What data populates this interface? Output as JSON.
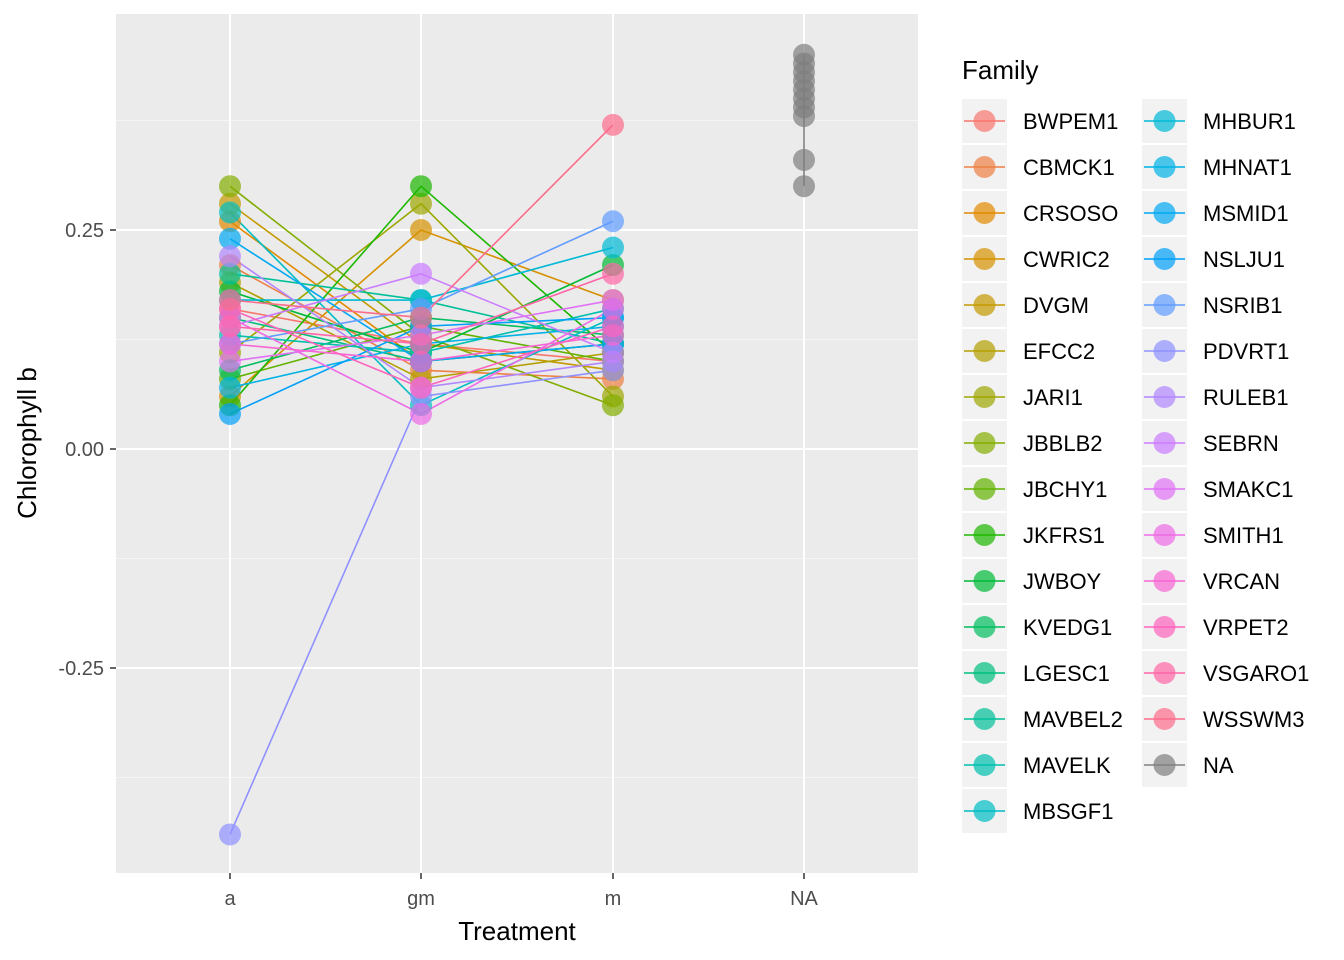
{
  "chart_data": {
    "type": "line",
    "title": "",
    "xlabel": "Treatment",
    "ylabel": "Chlorophyll b",
    "categories": [
      "a",
      "gm",
      "m",
      "NA"
    ],
    "ylim": [
      -0.48,
      0.48
    ],
    "y_ticks": [
      -0.25,
      0.0,
      0.25
    ],
    "y_tick_labels": [
      "-0.25",
      "0.00",
      "0.25"
    ],
    "grid": true,
    "legend": {
      "title": "Family",
      "placement": "right",
      "columns": 2
    },
    "series": [
      {
        "name": "BWPEM1",
        "color": "#F8766D",
        "values": [
          0.16,
          0.12,
          0.1,
          null
        ]
      },
      {
        "name": "CBMCK1",
        "color": "#EE8044",
        "values": [
          0.21,
          0.09,
          0.08,
          null
        ]
      },
      {
        "name": "CRSOSO",
        "color": "#E28900",
        "values": [
          0.26,
          0.1,
          0.12,
          null
        ]
      },
      {
        "name": "CWRIC2",
        "color": "#D69100",
        "values": [
          0.06,
          0.25,
          0.17,
          null
        ]
      },
      {
        "name": "DVGM",
        "color": "#C59900",
        "values": [
          0.28,
          0.12,
          0.09,
          null
        ]
      },
      {
        "name": "EFCC2",
        "color": "#B3A000",
        "values": [
          0.19,
          0.08,
          0.11,
          null
        ]
      },
      {
        "name": "JARI1",
        "color": "#9DA700",
        "values": [
          0.11,
          0.28,
          0.06,
          null
        ]
      },
      {
        "name": "JBBLB2",
        "color": "#83AD00",
        "values": [
          0.3,
          0.13,
          0.05,
          null
        ]
      },
      {
        "name": "JBCHY1",
        "color": "#62B200",
        "values": [
          0.08,
          0.14,
          0.1,
          null
        ]
      },
      {
        "name": "JKFRS1",
        "color": "#1DB700",
        "values": [
          0.05,
          0.3,
          0.11,
          null
        ]
      },
      {
        "name": "JWBOY",
        "color": "#00BA38",
        "values": [
          0.18,
          0.11,
          0.21,
          null
        ]
      },
      {
        "name": "KVEDG1",
        "color": "#00BD5E",
        "values": [
          0.09,
          0.15,
          0.13,
          null
        ]
      },
      {
        "name": "LGESC1",
        "color": "#00BF7D",
        "values": [
          0.15,
          0.1,
          0.12,
          null
        ]
      },
      {
        "name": "MAVBEL2",
        "color": "#00C098",
        "values": [
          0.2,
          0.17,
          0.12,
          null
        ]
      },
      {
        "name": "MAVELK",
        "color": "#00C0AF",
        "values": [
          0.13,
          0.11,
          0.16,
          null
        ]
      },
      {
        "name": "MBSGF1",
        "color": "#00BDC4",
        "values": [
          0.27,
          0.05,
          0.15,
          null
        ]
      },
      {
        "name": "MHBUR1",
        "color": "#00B9D6",
        "values": [
          0.17,
          0.17,
          0.23,
          null
        ]
      },
      {
        "name": "MHNAT1",
        "color": "#00B2E6",
        "values": [
          0.07,
          0.12,
          0.14,
          null
        ]
      },
      {
        "name": "MSMID1",
        "color": "#00A8F2",
        "values": [
          0.24,
          0.1,
          0.12,
          null
        ]
      },
      {
        "name": "NSLJU1",
        "color": "#00A0FA",
        "values": [
          0.04,
          0.14,
          0.15,
          null
        ]
      },
      {
        "name": "NSRIB1",
        "color": "#619CFF",
        "values": [
          0.12,
          0.16,
          0.26,
          null
        ]
      },
      {
        "name": "PDVRT1",
        "color": "#8F91FF",
        "values": [
          -0.44,
          0.06,
          0.09,
          null
        ]
      },
      {
        "name": "RULEB1",
        "color": "#B186FF",
        "values": [
          0.22,
          0.07,
          0.1,
          null
        ]
      },
      {
        "name": "SEBRN",
        "color": "#CB7CFF",
        "values": [
          0.14,
          0.2,
          0.11,
          null
        ]
      },
      {
        "name": "SMAKC1",
        "color": "#E072F5",
        "values": [
          0.1,
          0.13,
          0.17,
          null
        ]
      },
      {
        "name": "SMITH1",
        "color": "#EE6AE6",
        "values": [
          0.15,
          0.04,
          0.16,
          null
        ]
      },
      {
        "name": "VRCAN",
        "color": "#F866D3",
        "values": [
          0.12,
          0.1,
          0.13,
          null
        ]
      },
      {
        "name": "VRPET2",
        "color": "#FE64BE",
        "values": [
          0.16,
          0.07,
          0.14,
          null
        ]
      },
      {
        "name": "VSGARO1",
        "color": "#FF66A7",
        "values": [
          0.14,
          0.12,
          0.2,
          null
        ]
      },
      {
        "name": "WSSWM3",
        "color": "#FC6C8C",
        "values": [
          0.17,
          0.15,
          0.37,
          null
        ]
      },
      {
        "name": "NA",
        "color": "#7F7F7F",
        "values": [
          null,
          null,
          null,
          [
            0.3,
            0.33,
            0.38,
            0.39,
            0.4,
            0.41,
            0.42,
            0.43,
            0.44,
            0.45
          ]
        ]
      }
    ]
  }
}
